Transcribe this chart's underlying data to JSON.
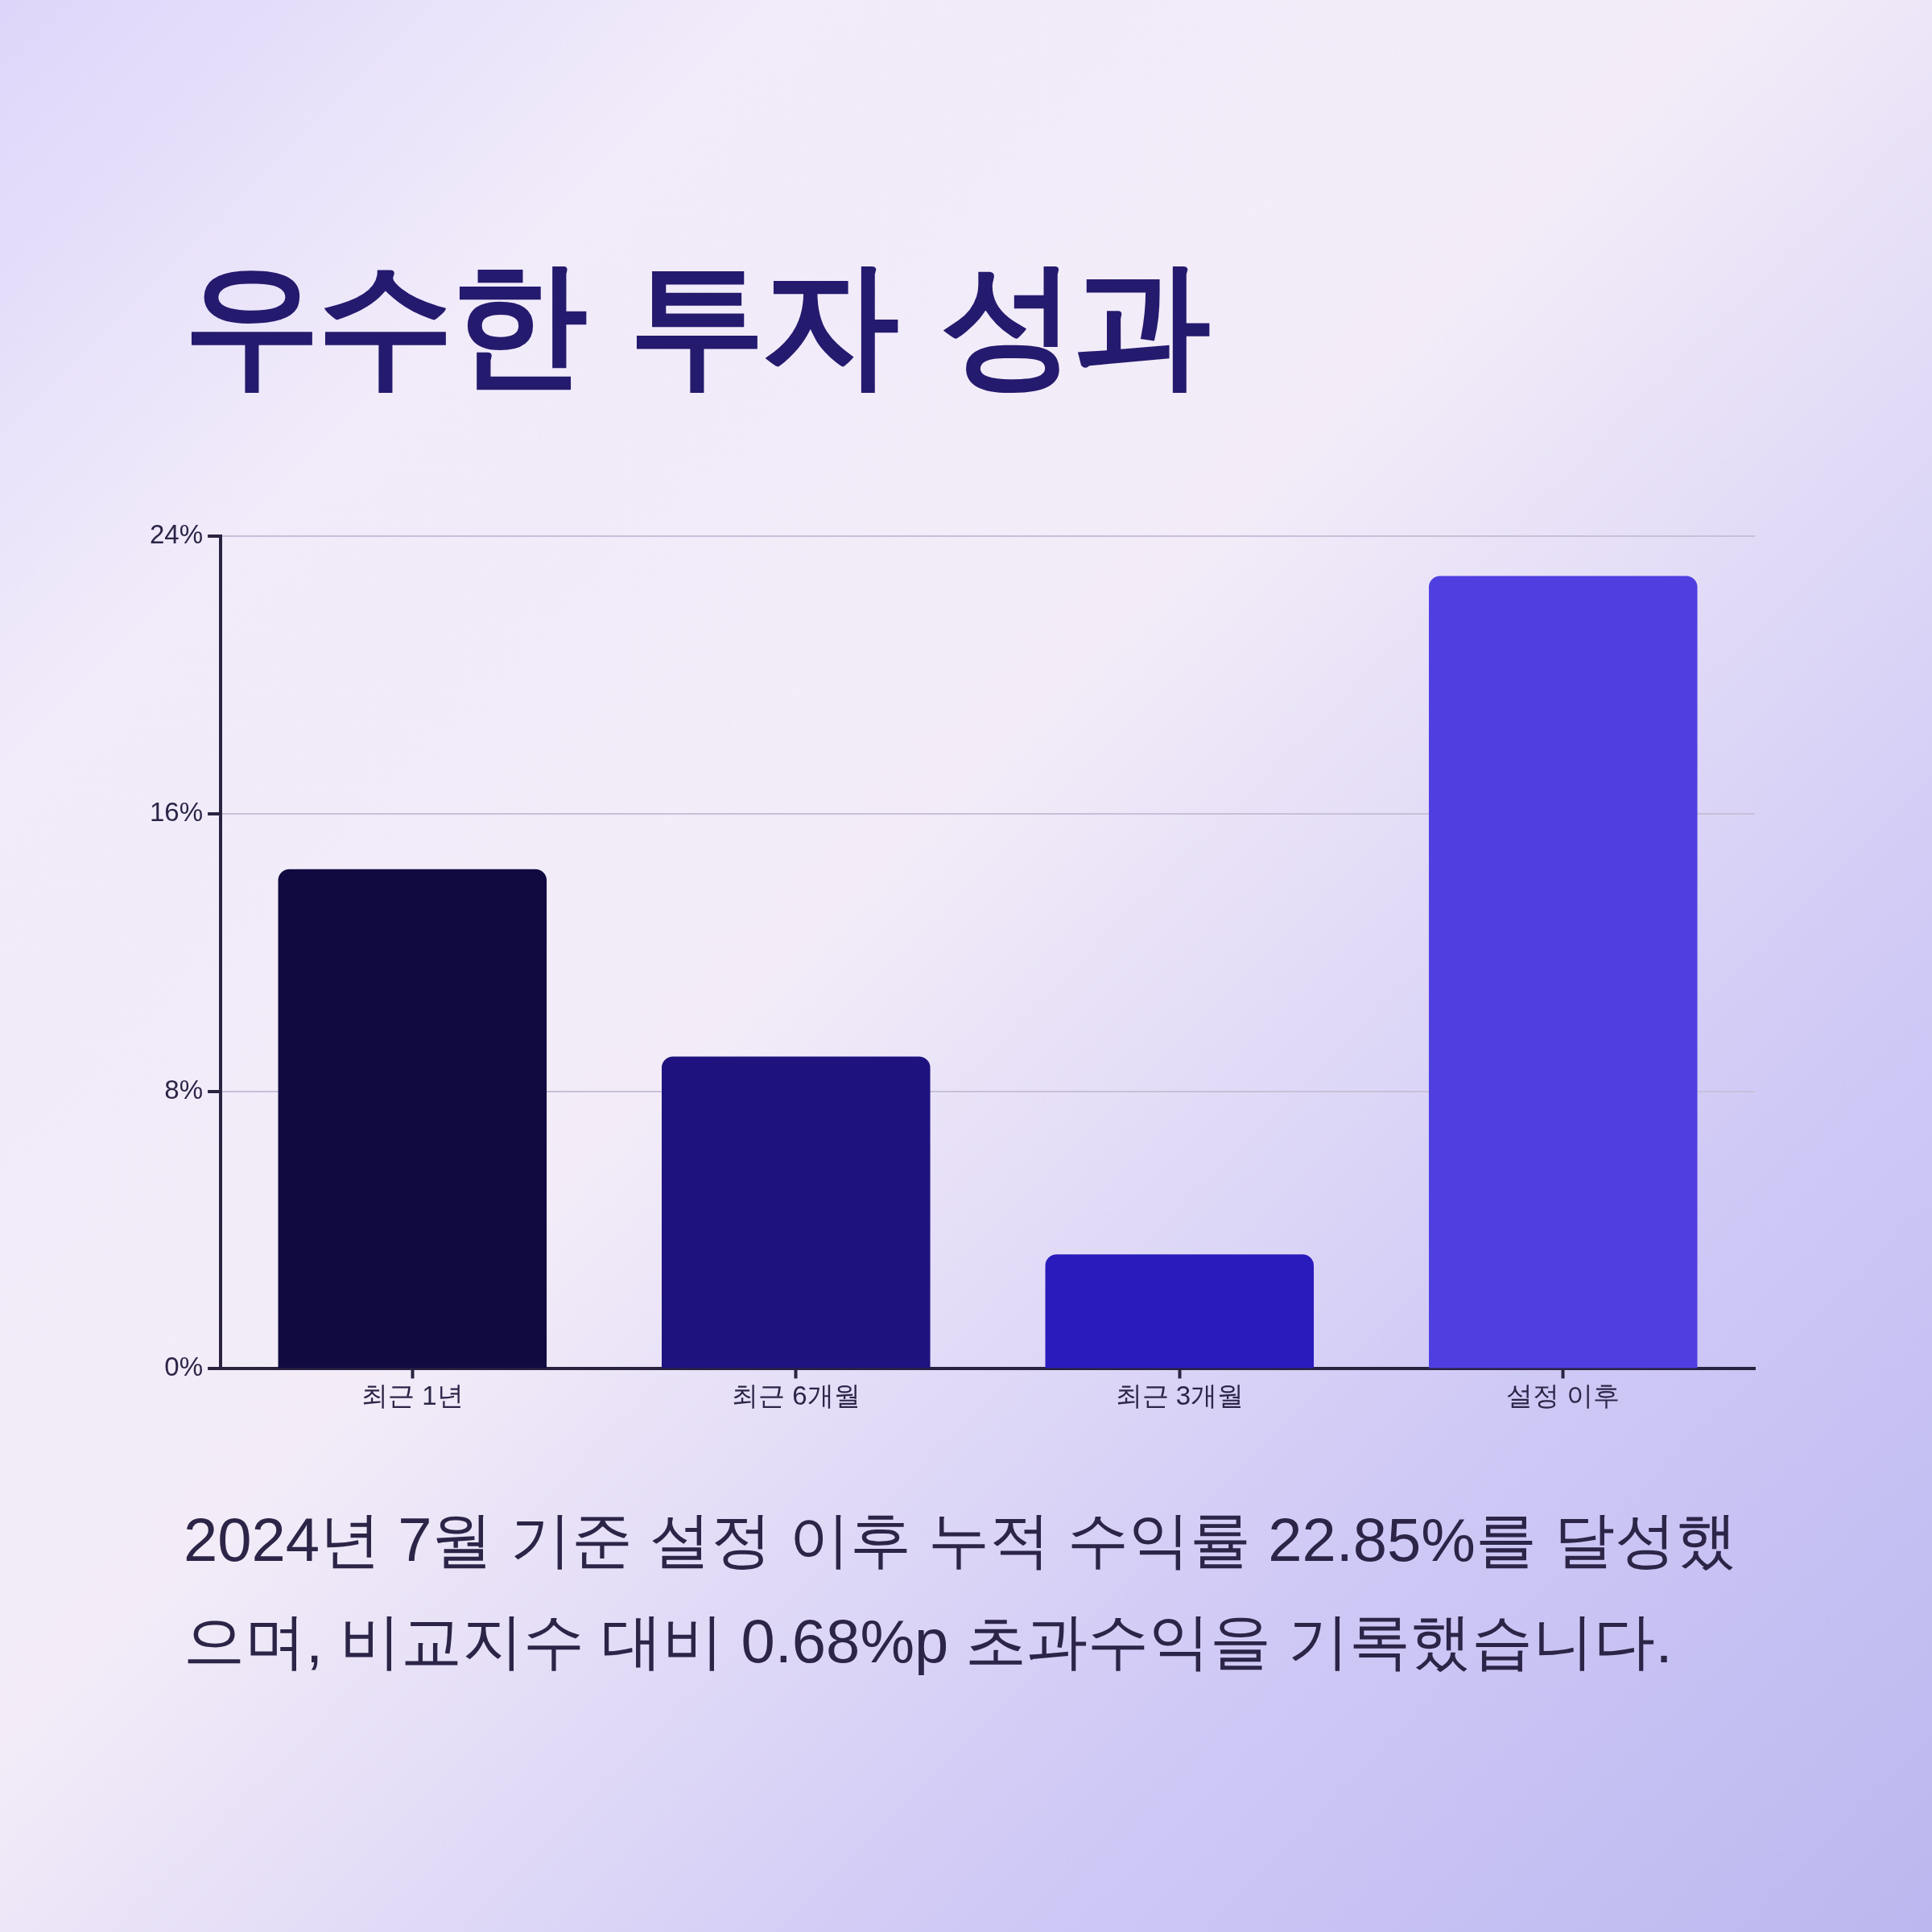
{
  "chart_data": {
    "type": "bar",
    "title": "우수한 투자 성과",
    "categories": [
      "최근 1년",
      "최근 6개월",
      "최근 3개월",
      "설정 이후"
    ],
    "values": [
      14.4,
      9.0,
      3.3,
      22.85
    ],
    "colors": [
      "#100a40",
      "#1e137e",
      "#2a1bbd",
      "#503fe0"
    ],
    "ylim": [
      0,
      24
    ],
    "yticks": [
      {
        "value": 0,
        "label": "0%"
      },
      {
        "value": 8,
        "label": "8%"
      },
      {
        "value": 16,
        "label": "16%"
      },
      {
        "value": 24,
        "label": "24%"
      }
    ],
    "grid": "y",
    "annotations": [
      "2024년 7월 기준 설정 이후 누적 수익률 22.85%를 달성했으며, 비교지수 대비 0.68%p 초과수익을 기록했습니다."
    ]
  }
}
